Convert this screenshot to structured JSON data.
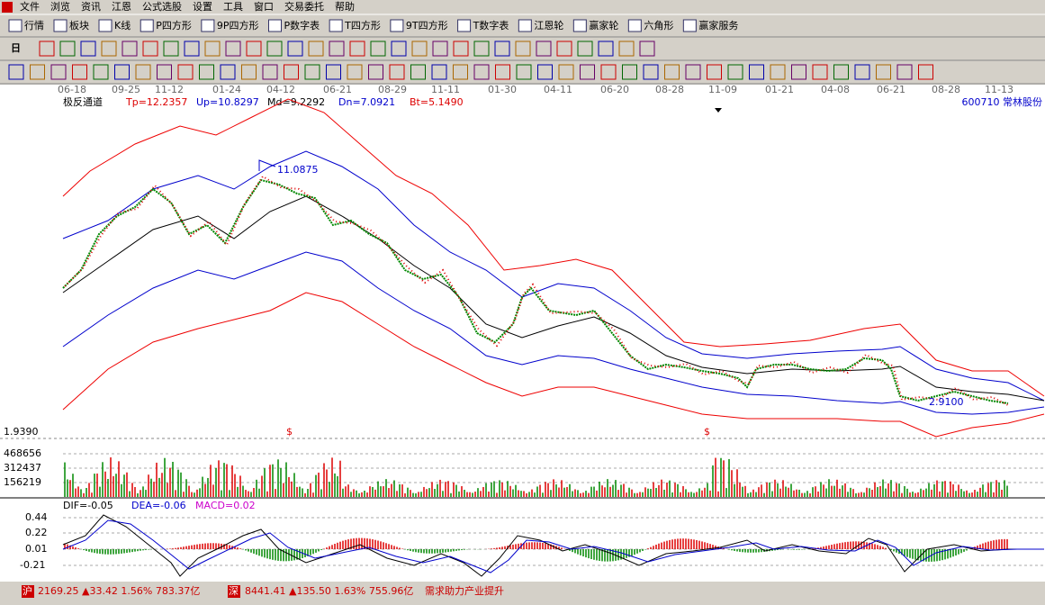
{
  "menu": [
    "文件",
    "浏览",
    "资讯",
    "江恩",
    "公式选股",
    "设置",
    "工具",
    "窗口",
    "交易委托",
    "帮助"
  ],
  "toolbar": [
    "行情",
    "板块",
    "K线",
    "P四方形",
    "9P四方形",
    "P数字表",
    "T四方形",
    "9T四方形",
    "T数字表",
    "江恩轮",
    "赢家轮",
    "六角形",
    "赢家服务"
  ],
  "period": "日",
  "dates": [
    "06-18",
    "09-25",
    "11-12",
    "01-24",
    "04-12",
    "06-21",
    "08-29",
    "11-11",
    "01-30",
    "04-11",
    "06-20",
    "08-28",
    "11-09",
    "01-21",
    "04-08",
    "06-21",
    "08-28",
    "11-13"
  ],
  "indicator": {
    "name": "极反通道",
    "tp": "Tp=12.2357",
    "up": "Up=10.8297",
    "md": "Md=9.2292",
    "dn": "Dn=7.0921",
    "bt": "Bt=5.1490"
  },
  "stock": "600710  常林股份",
  "annotations": {
    "high": "11.0875",
    "low": "2.9100",
    "marker": "$"
  },
  "price_axis": [
    "1.9390"
  ],
  "volume_axis": [
    "468656",
    "312437",
    "156219"
  ],
  "macd": {
    "dif": "DIF=-0.05",
    "dea": "DEA=-0.06",
    "macd": "MACD=0.02",
    "axis": [
      "0.44",
      "0.22",
      "0.01",
      "-0.21"
    ]
  },
  "status": {
    "sh_tag": "沪",
    "sh": "2169.25 ▲33.42 1.56% 783.37亿",
    "sz_tag": "深",
    "sz": "8441.41 ▲135.50 1.63% 755.96亿",
    "news": "需求助力产业提升"
  }
}
